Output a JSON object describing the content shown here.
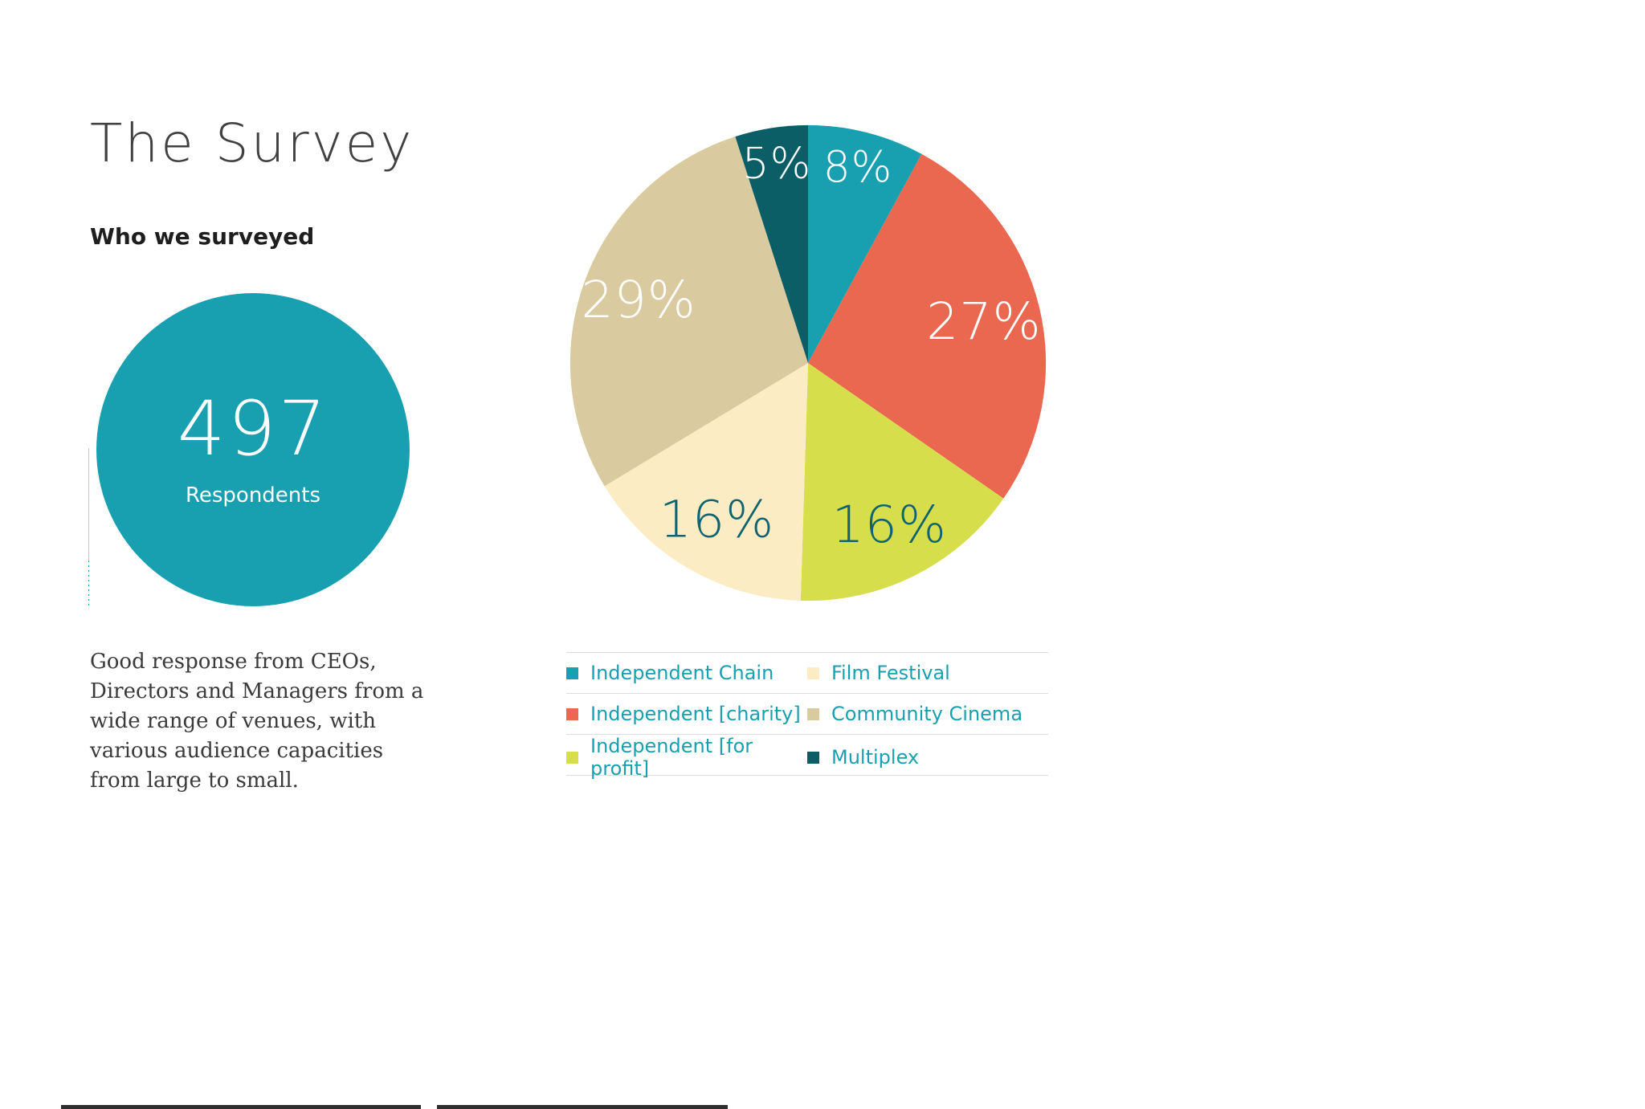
{
  "page": {
    "title": "The Survey",
    "subtitle": "Who we surveyed",
    "stat": {
      "value": "497",
      "label": "Respondents"
    },
    "description": "Good response from CEOs, Directors and Managers from a wide range of venues, with various audience capacities from large to small."
  },
  "colors": {
    "teal": "#18a0b1",
    "coral": "#e9684f",
    "lime": "#d6de4b",
    "cream": "#fbecc4",
    "tan": "#d9caa0",
    "dark_teal": "#0b5d66",
    "label_light": "#ffffff",
    "label_dark": "#11646f",
    "divider": "#dcdcdc",
    "title_gray": "#414141"
  },
  "chart_data": {
    "type": "pie",
    "title": "Who we surveyed",
    "value_suffix": "%",
    "start_angle_deg": 0,
    "direction": "clockwise",
    "slices": [
      {
        "label": "Independent Chain",
        "value": 8,
        "color": "#18a0b1",
        "text_color": "#ffffff"
      },
      {
        "label": "Independent [charity]",
        "value": 27,
        "color": "#e9684f",
        "text_color": "#ffffff"
      },
      {
        "label": "Independent [for profit]",
        "value": 16,
        "color": "#d6de4b",
        "text_color": "#11646f"
      },
      {
        "label": "Film Festival",
        "value": 16,
        "color": "#fbecc4",
        "text_color": "#11646f"
      },
      {
        "label": "Community Cinema",
        "value": 29,
        "color": "#d9caa0",
        "text_color": "#ffffff"
      },
      {
        "label": "Multiplex",
        "value": 5,
        "color": "#0b5d66",
        "text_color": "#ffffff"
      }
    ]
  },
  "legend": {
    "rows": [
      [
        0,
        3
      ],
      [
        1,
        4
      ],
      [
        2,
        5
      ]
    ]
  }
}
